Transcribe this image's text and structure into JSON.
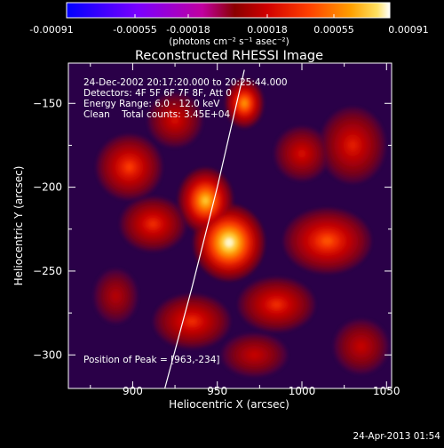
{
  "chart_data": {
    "type": "heatmap",
    "title": "Reconstructed RHESSI Image",
    "xlabel": "Heliocentric X (arcsec)",
    "ylabel": "Heliocentric Y (arcsec)",
    "xlim": [
      862,
      1053
    ],
    "ylim": [
      -320,
      -126
    ],
    "x_ticks": [
      "900",
      "950",
      "1000",
      "1050"
    ],
    "x_tick_values": [
      900,
      950,
      1000,
      1050
    ],
    "y_ticks": [
      "-150",
      "-200",
      "-250",
      "-300"
    ],
    "y_tick_values": [
      -150,
      -200,
      -250,
      -300
    ],
    "colorbar": {
      "range": [
        -0.00091,
        0.00091
      ],
      "tick_labels": [
        "-0.00091",
        "-0.00055",
        "-0.00018",
        "0.00018",
        "0.00055",
        "0.00091"
      ],
      "unit_label": "(photons cm⁻² s⁻¹ asec⁻²)",
      "colormap": "rainbow-to-hot"
    },
    "annotations": [
      "24-Dec-2002 20:17:20.000 to 20:25:44.000",
      "Detectors: 4F 5F 6F 7F 8F, Att 0",
      "Energy Range: 6.0 - 12.0 keV",
      "Clean    Total counts: 3.45E+04",
      "Position of Peak = [963,-234]"
    ],
    "peak": {
      "x": 963,
      "y": -234
    },
    "limb_curve": [
      {
        "x": 919,
        "y": -320
      },
      {
        "x": 935,
        "y": -260
      },
      {
        "x": 950,
        "y": -200
      },
      {
        "x": 966,
        "y": -130
      }
    ],
    "emission_sources": [
      {
        "x": 957,
        "y": -233,
        "intensity": 1.0,
        "sx": 13,
        "sy": 14
      },
      {
        "x": 943,
        "y": -208,
        "intensity": 0.85,
        "sx": 10,
        "sy": 12
      },
      {
        "x": 966,
        "y": -150,
        "intensity": 0.75,
        "sx": 7,
        "sy": 9
      },
      {
        "x": 898,
        "y": -188,
        "intensity": 0.55,
        "sx": 12,
        "sy": 12
      },
      {
        "x": 912,
        "y": -222,
        "intensity": 0.5,
        "sx": 12,
        "sy": 10
      },
      {
        "x": 1015,
        "y": -232,
        "intensity": 0.6,
        "sx": 16,
        "sy": 12
      },
      {
        "x": 1030,
        "y": -175,
        "intensity": 0.45,
        "sx": 12,
        "sy": 14
      },
      {
        "x": 985,
        "y": -270,
        "intensity": 0.5,
        "sx": 14,
        "sy": 10
      },
      {
        "x": 935,
        "y": -280,
        "intensity": 0.5,
        "sx": 14,
        "sy": 10
      },
      {
        "x": 1000,
        "y": -180,
        "intensity": 0.4,
        "sx": 10,
        "sy": 10
      },
      {
        "x": 925,
        "y": -160,
        "intensity": 0.4,
        "sx": 10,
        "sy": 10
      },
      {
        "x": 1035,
        "y": -295,
        "intensity": 0.35,
        "sx": 10,
        "sy": 10
      },
      {
        "x": 890,
        "y": -265,
        "intensity": 0.3,
        "sx": 8,
        "sy": 10
      },
      {
        "x": 972,
        "y": -300,
        "intensity": 0.35,
        "sx": 12,
        "sy": 8
      }
    ],
    "timestamp": "24-Apr-2013 01:54"
  }
}
